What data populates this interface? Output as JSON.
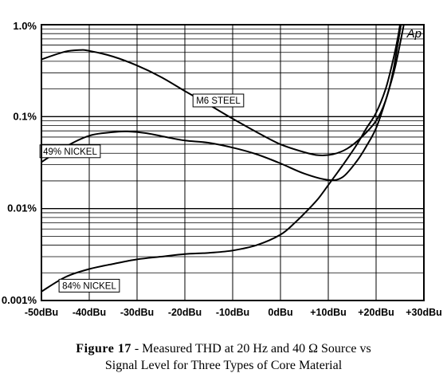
{
  "chart_data": {
    "type": "line",
    "x_scale": "linear",
    "y_scale": "log",
    "xlim": [
      -50,
      30
    ],
    "ylim": [
      0.001,
      1.0
    ],
    "x_ticks": [
      {
        "value": -50,
        "label": "-50dBu"
      },
      {
        "value": -40,
        "label": "-40dBu"
      },
      {
        "value": -30,
        "label": "-30dBu"
      },
      {
        "value": -20,
        "label": "-20dBu"
      },
      {
        "value": -10,
        "label": "-10dBu"
      },
      {
        "value": 0,
        "label": "0dBu"
      },
      {
        "value": 10,
        "label": "+10dBu"
      },
      {
        "value": 20,
        "label": "+20dBu"
      },
      {
        "value": 30,
        "label": "+30dBu"
      }
    ],
    "y_ticks": [
      {
        "value": 1.0,
        "label": "1.0%"
      },
      {
        "value": 0.1,
        "label": "0.1%"
      },
      {
        "value": 0.01,
        "label": "0.01%"
      },
      {
        "value": 0.001,
        "label": "0.001%"
      }
    ],
    "grid": true,
    "series": [
      {
        "name": "M6 STEEL",
        "points": [
          [
            -50,
            0.42
          ],
          [
            -45,
            0.51
          ],
          [
            -42,
            0.53
          ],
          [
            -40,
            0.52
          ],
          [
            -35,
            0.45
          ],
          [
            -30,
            0.36
          ],
          [
            -25,
            0.27
          ],
          [
            -20,
            0.19
          ],
          [
            -15,
            0.135
          ],
          [
            -10,
            0.095
          ],
          [
            -5,
            0.068
          ],
          [
            0,
            0.05
          ],
          [
            5,
            0.041
          ],
          [
            8,
            0.038
          ],
          [
            11,
            0.039
          ],
          [
            14,
            0.045
          ],
          [
            17,
            0.06
          ],
          [
            20,
            0.09
          ],
          [
            22,
            0.15
          ],
          [
            23.5,
            0.3
          ],
          [
            24.5,
            0.6
          ],
          [
            25.2,
            1.0
          ]
        ]
      },
      {
        "name": "49% NICKEL",
        "points": [
          [
            -50,
            0.032
          ],
          [
            -45,
            0.047
          ],
          [
            -40,
            0.062
          ],
          [
            -35,
            0.068
          ],
          [
            -32,
            0.069
          ],
          [
            -28,
            0.066
          ],
          [
            -24,
            0.06
          ],
          [
            -20,
            0.055
          ],
          [
            -15,
            0.052
          ],
          [
            -10,
            0.046
          ],
          [
            -5,
            0.039
          ],
          [
            0,
            0.031
          ],
          [
            5,
            0.024
          ],
          [
            10,
            0.0205
          ],
          [
            13,
            0.022
          ],
          [
            16,
            0.033
          ],
          [
            18,
            0.048
          ],
          [
            20,
            0.075
          ],
          [
            22,
            0.15
          ],
          [
            24,
            0.35
          ],
          [
            25.8,
            1.0
          ]
        ]
      },
      {
        "name": "84% NICKEL",
        "points": [
          [
            -50,
            0.00125
          ],
          [
            -45,
            0.0018
          ],
          [
            -40,
            0.0022
          ],
          [
            -35,
            0.0025
          ],
          [
            -30,
            0.0028
          ],
          [
            -25,
            0.003
          ],
          [
            -20,
            0.0032
          ],
          [
            -15,
            0.0033
          ],
          [
            -10,
            0.0035
          ],
          [
            -5,
            0.004
          ],
          [
            0,
            0.0052
          ],
          [
            3,
            0.007
          ],
          [
            6,
            0.01
          ],
          [
            8,
            0.013
          ],
          [
            10,
            0.018
          ],
          [
            12,
            0.025
          ],
          [
            14,
            0.035
          ],
          [
            16,
            0.05
          ],
          [
            18,
            0.075
          ],
          [
            20,
            0.11
          ],
          [
            22,
            0.2
          ],
          [
            23.5,
            0.4
          ],
          [
            24.5,
            0.7
          ],
          [
            25,
            1.0
          ]
        ]
      }
    ],
    "annotations": [
      {
        "text": "M6 STEEL",
        "series": "M6 STEEL",
        "at": [
          -13,
          0.15
        ]
      },
      {
        "text": "49% NICKEL",
        "series": "49% NICKEL",
        "at": [
          -44,
          0.042
        ]
      },
      {
        "text": "84% NICKEL",
        "series": "84% NICKEL",
        "at": [
          -40,
          0.00145
        ]
      }
    ],
    "brand_mark": "Ap"
  },
  "caption": {
    "figure_label": "Figure 17",
    "line1_rest": " - Measured THD at 20 Hz and 40 Ω Source vs",
    "line2": "Signal Level for Three Types of Core Material"
  }
}
